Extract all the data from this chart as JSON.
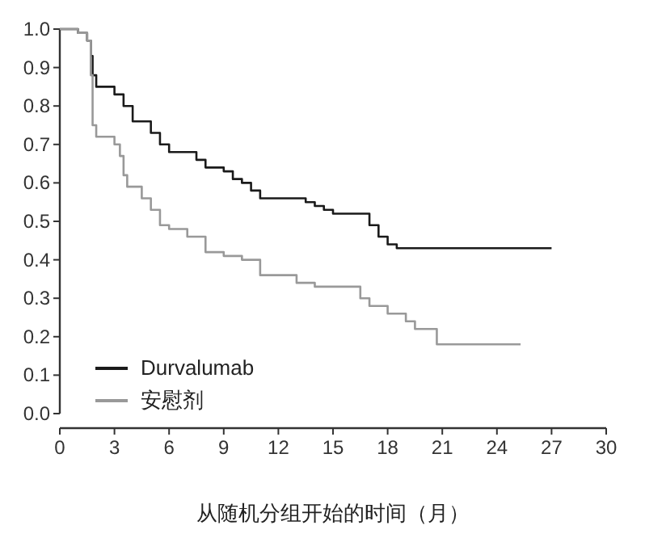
{
  "chart_data": {
    "type": "step",
    "xlabel": "从随机分组开始的时间（月）",
    "xlim": [
      0,
      30
    ],
    "xticks": [
      0,
      3,
      6,
      9,
      12,
      15,
      18,
      21,
      24,
      27,
      30
    ],
    "ylim": [
      0,
      1
    ],
    "yticks": [
      {
        "value": 0,
        "label": "0.0"
      },
      0.1,
      0.2,
      0.3,
      0.4,
      0.5,
      0.6,
      0.7,
      0.8,
      0.9,
      {
        "value": 1,
        "label": "1.0"
      }
    ],
    "legend": "bottom left",
    "grid": false,
    "line_style": "solid",
    "series": [
      {
        "name": "Durvalumab",
        "color": "#1a1a1a",
        "x": [
          0,
          1,
          1.5,
          1.7,
          1.8,
          2,
          3,
          3.5,
          4,
          5,
          5.5,
          6,
          7.5,
          8,
          9,
          9.5,
          10,
          10.5,
          11,
          12,
          13.5,
          14,
          14.5,
          15,
          16.5,
          17,
          17.5,
          18,
          18.5,
          27
        ],
        "values": [
          1.0,
          0.99,
          0.97,
          0.93,
          0.88,
          0.85,
          0.83,
          0.8,
          0.76,
          0.73,
          0.7,
          0.68,
          0.66,
          0.64,
          0.63,
          0.61,
          0.6,
          0.58,
          0.56,
          0.56,
          0.55,
          0.54,
          0.53,
          0.52,
          0.52,
          0.49,
          0.46,
          0.44,
          0.43,
          0.43
        ]
      },
      {
        "name": "安慰剂",
        "color": "#999999",
        "x": [
          0,
          1,
          1.5,
          1.7,
          1.8,
          2,
          3,
          3.3,
          3.5,
          3.7,
          4.5,
          5,
          5.5,
          6,
          7,
          8,
          9,
          10,
          11,
          12,
          13,
          14,
          16,
          16.5,
          17,
          18,
          19,
          19.5,
          20.7,
          25.3
        ],
        "values": [
          1.0,
          0.99,
          0.97,
          0.88,
          0.75,
          0.72,
          0.7,
          0.67,
          0.62,
          0.59,
          0.56,
          0.53,
          0.49,
          0.48,
          0.46,
          0.42,
          0.41,
          0.4,
          0.36,
          0.36,
          0.34,
          0.33,
          0.33,
          0.3,
          0.28,
          0.26,
          0.24,
          0.22,
          0.18,
          0.18
        ]
      }
    ]
  }
}
